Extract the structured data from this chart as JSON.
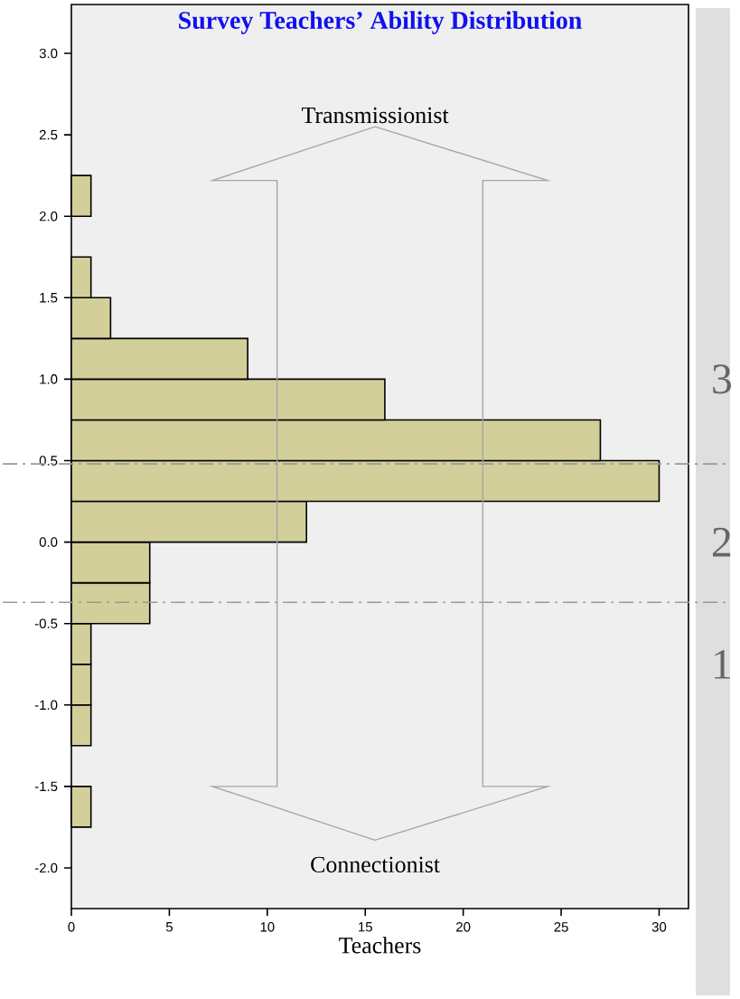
{
  "chart_data": {
    "type": "histogram",
    "orientation": "horizontal",
    "title": "Survey Teachers’ Ability Distribution",
    "xlabel": "Teachers",
    "bins": [
      -1.75,
      -1.5,
      -1.25,
      -1.0,
      -0.75,
      -0.5,
      -0.25,
      0.0,
      0.25,
      0.5,
      0.75,
      1.0,
      1.25,
      1.5,
      1.75,
      2.0,
      2.25
    ],
    "values": [
      1,
      0,
      1,
      1,
      1,
      4,
      4,
      12,
      30,
      27,
      16,
      9,
      2,
      1,
      0,
      1
    ],
    "color": "#d3cf9a",
    "xlim": [
      0,
      31.5
    ],
    "ylim": [
      -2.25,
      3.3
    ],
    "xticks": [
      0,
      5,
      10,
      15,
      20,
      25,
      30
    ],
    "yticks": [
      {
        "value": -2.0,
        "label": "-2.0"
      },
      {
        "value": -1.5,
        "label": "-1.5"
      },
      {
        "value": -1.0,
        "label": "-1.0"
      },
      {
        "value": -0.5,
        "label": "-0.5"
      },
      {
        "value": 0.0,
        "label": "0.0"
      },
      {
        "value": 0.5,
        "label": "0.5"
      },
      {
        "value": 1.0,
        "label": "1.0"
      },
      {
        "value": 1.5,
        "label": "1.5"
      },
      {
        "value": 2.0,
        "label": "2.0"
      },
      {
        "value": 2.5,
        "label": "2.5"
      },
      {
        "value": 3.0,
        "label": "3.0"
      }
    ],
    "ref_lines": [
      {
        "axis": "y",
        "value": 0.48,
        "color": "#999999"
      },
      {
        "axis": "y",
        "value": -0.37,
        "color": "#999999"
      }
    ],
    "annotations": [
      "Transmissionist",
      "Connectionist",
      "3",
      "2",
      "1"
    ]
  }
}
